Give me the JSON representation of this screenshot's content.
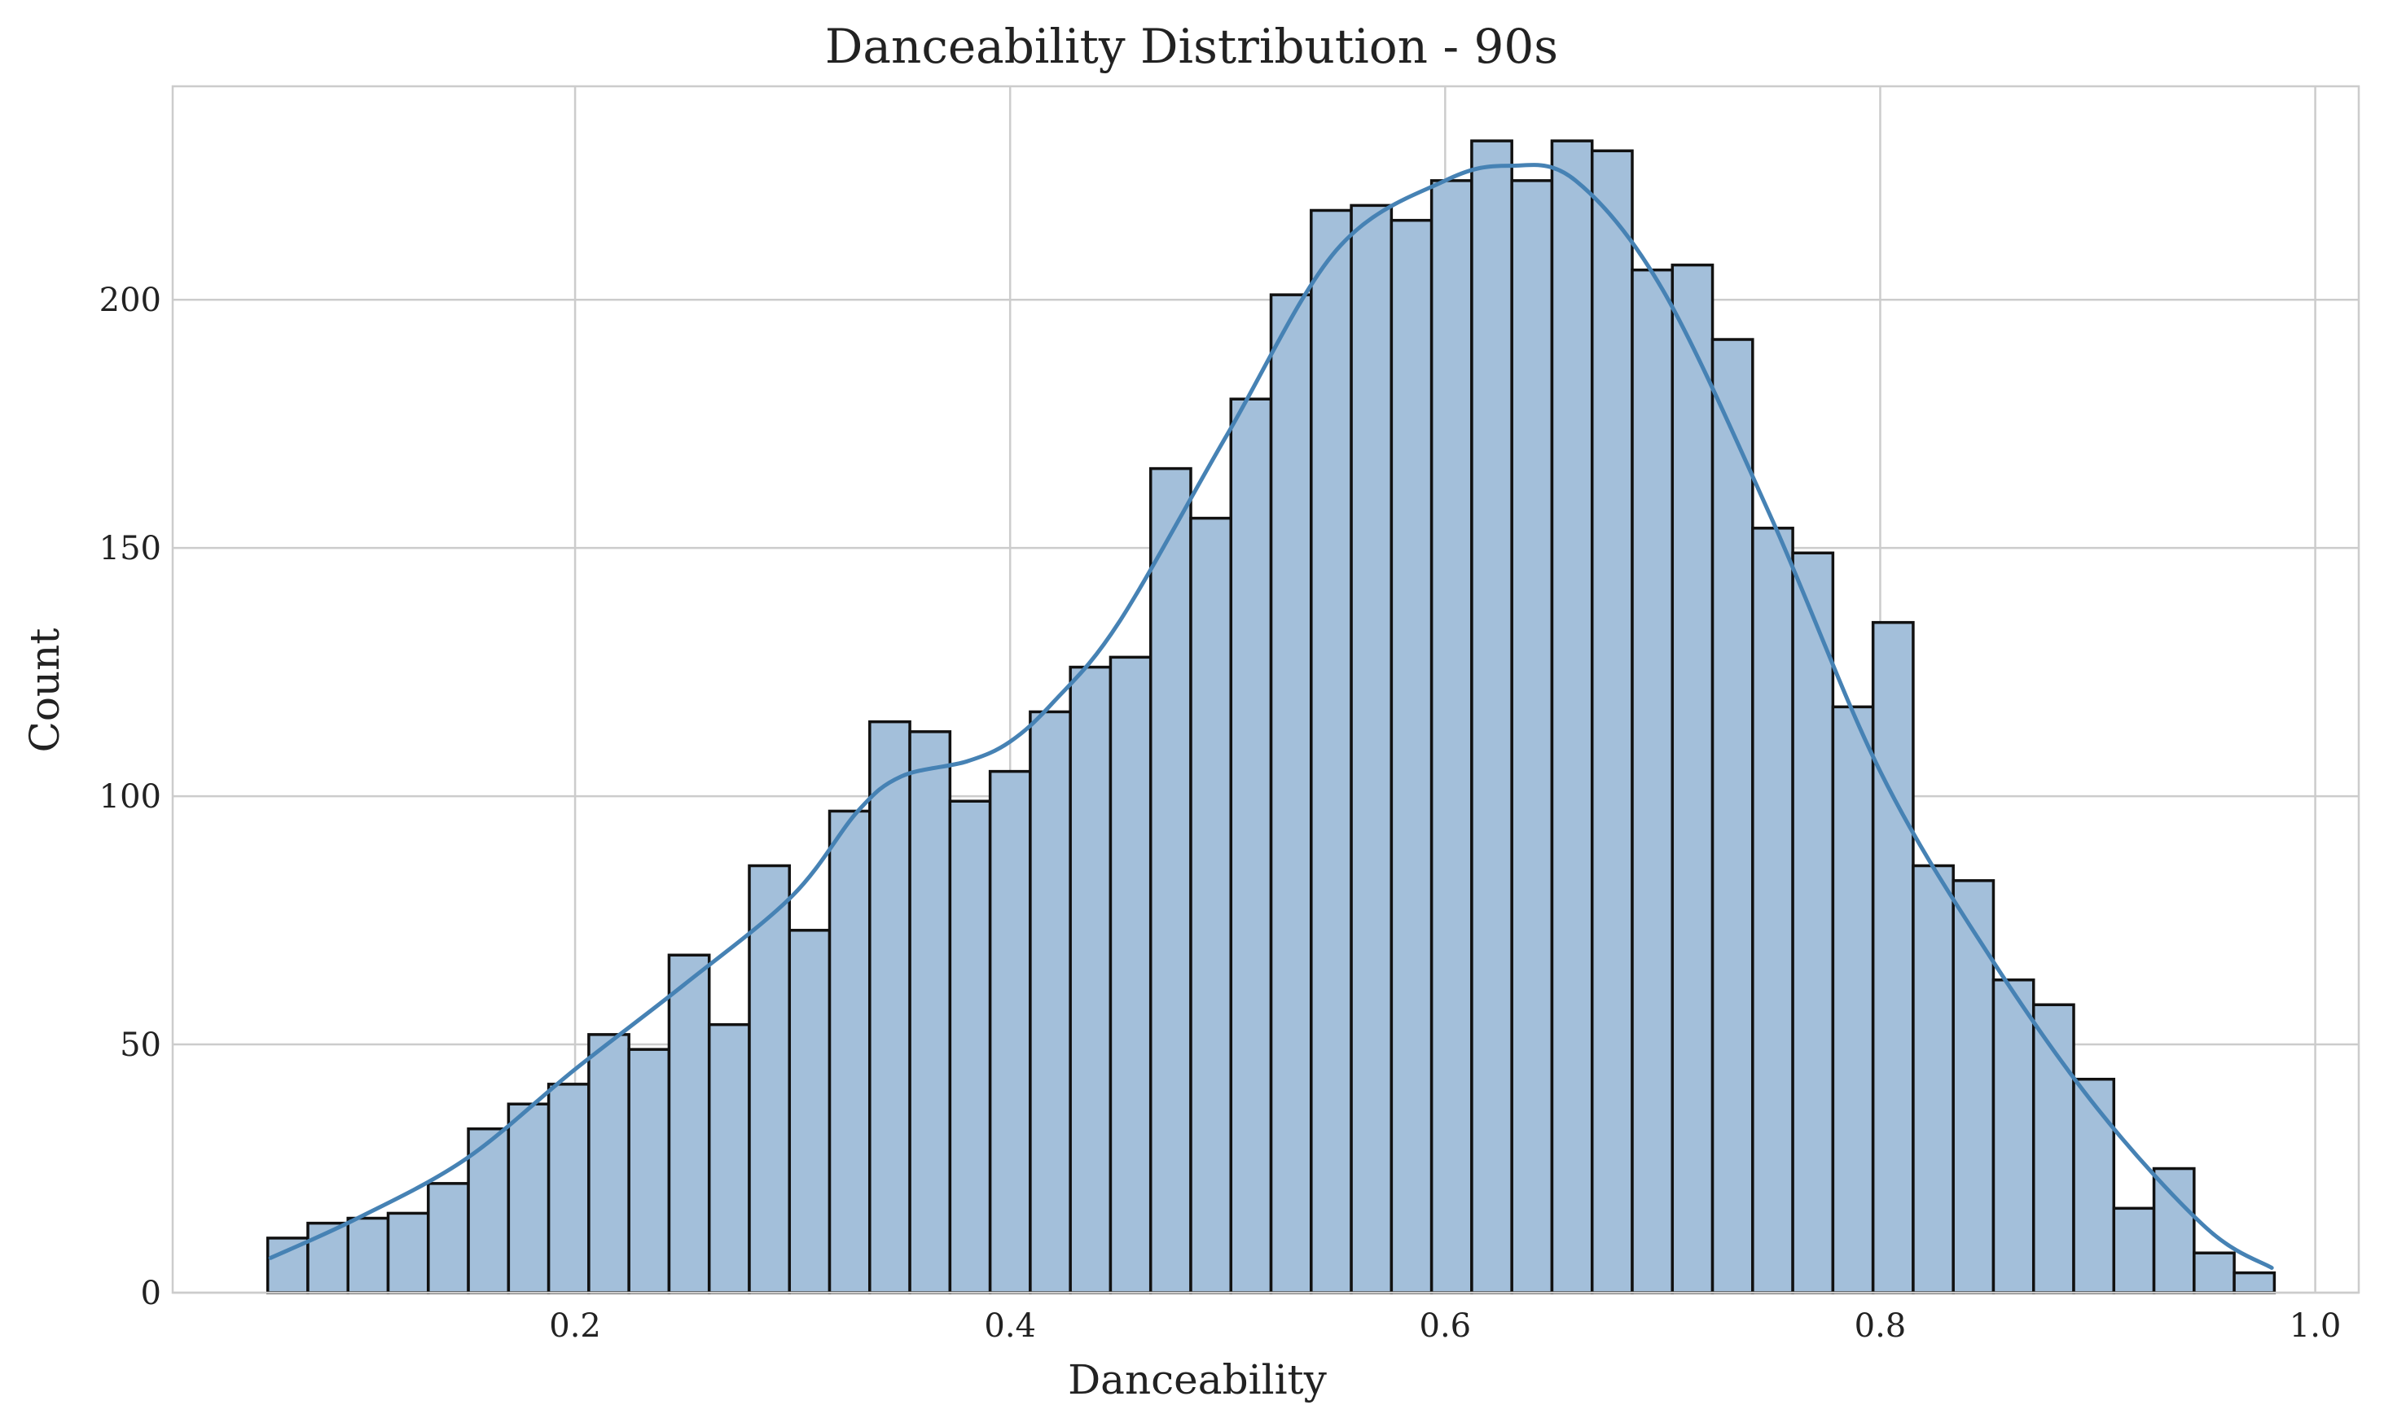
{
  "chart_data": {
    "type": "histogram",
    "title": "Danceability Distribution - 90s",
    "xlabel": "Danceability",
    "ylabel": "Count",
    "xlim": [
      0.015,
      1.02
    ],
    "ylim": [
      0,
      243
    ],
    "xticks": [
      0.2,
      0.4,
      0.6,
      0.8,
      1.0
    ],
    "xtick_labels": [
      "0.2",
      "0.4",
      "0.6",
      "0.8",
      "1.0"
    ],
    "yticks": [
      0,
      50,
      100,
      150,
      200
    ],
    "ytick_labels": [
      "0",
      "50",
      "100",
      "150",
      "200"
    ],
    "grid": true,
    "bins": {
      "start": 0.0587,
      "width": 0.01845,
      "counts": [
        11,
        14,
        15,
        16,
        22,
        33,
        38,
        42,
        52,
        49,
        68,
        54,
        86,
        73,
        97,
        115,
        113,
        99,
        105,
        117,
        126,
        128,
        166,
        156,
        180,
        201,
        218,
        219,
        216,
        224,
        232,
        224,
        232,
        230,
        206,
        207,
        192,
        154,
        149,
        118,
        135,
        86,
        83,
        63,
        58,
        43,
        17,
        25,
        8,
        4
      ]
    },
    "kde": {
      "x": [
        0.06,
        0.1,
        0.15,
        0.2,
        0.25,
        0.3,
        0.33,
        0.35,
        0.38,
        0.4,
        0.42,
        0.45,
        0.5,
        0.55,
        0.6,
        0.63,
        0.66,
        0.7,
        0.75,
        0.8,
        0.85,
        0.9,
        0.95,
        0.98
      ],
      "y": [
        7,
        15,
        27,
        45,
        62,
        80,
        97,
        104,
        107,
        111,
        119,
        135,
        173,
        210,
        224,
        227,
        224,
        202,
        156,
        105,
        68,
        37,
        13,
        5
      ]
    },
    "colors": {
      "bar_fill": "#a3bfda",
      "bar_edge": "#111111",
      "kde_line": "#4682b4",
      "grid": "#cccccc"
    }
  }
}
